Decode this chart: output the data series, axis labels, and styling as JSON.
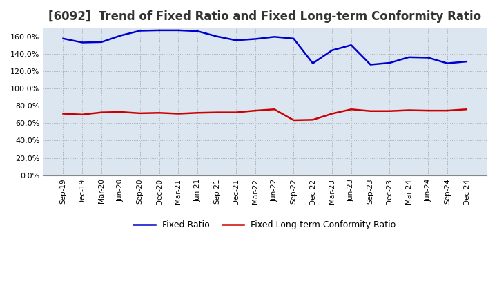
{
  "title": "[6092]  Trend of Fixed Ratio and Fixed Long-term Conformity Ratio",
  "title_fontsize": 12,
  "background_color": "#ffffff",
  "plot_bg_color": "#dce6f0",
  "grid_color": "#aaaaaa",
  "fixed_ratio_color": "#0000cc",
  "fixed_lt_color": "#cc0000",
  "fixed_ratio_label": "Fixed Ratio",
  "fixed_lt_label": "Fixed Long-term Conformity Ratio",
  "x_labels": [
    "Sep-19",
    "Dec-19",
    "Mar-20",
    "Jun-20",
    "Sep-20",
    "Dec-20",
    "Mar-21",
    "Jun-21",
    "Sep-21",
    "Dec-21",
    "Mar-22",
    "Jun-22",
    "Sep-22",
    "Dec-22",
    "Mar-23",
    "Jun-23",
    "Sep-23",
    "Dec-23",
    "Mar-24",
    "Jun-24",
    "Sep-24",
    "Dec-24"
  ],
  "fixed_ratio": [
    1.575,
    1.53,
    1.535,
    1.61,
    1.665,
    1.67,
    1.67,
    1.66,
    1.6,
    1.555,
    1.57,
    1.595,
    1.575,
    1.29,
    1.44,
    1.5,
    1.275,
    1.295,
    1.36,
    1.355,
    1.29,
    1.31
  ],
  "fixed_lt": [
    0.71,
    0.7,
    0.725,
    0.73,
    0.715,
    0.72,
    0.71,
    0.72,
    0.725,
    0.725,
    0.745,
    0.76,
    0.635,
    0.64,
    0.71,
    0.76,
    0.74,
    0.74,
    0.75,
    0.745,
    0.745,
    0.76
  ],
  "ymin": 0.0,
  "ymax": 1.7,
  "ytick_step": 0.2,
  "line_width": 1.8
}
